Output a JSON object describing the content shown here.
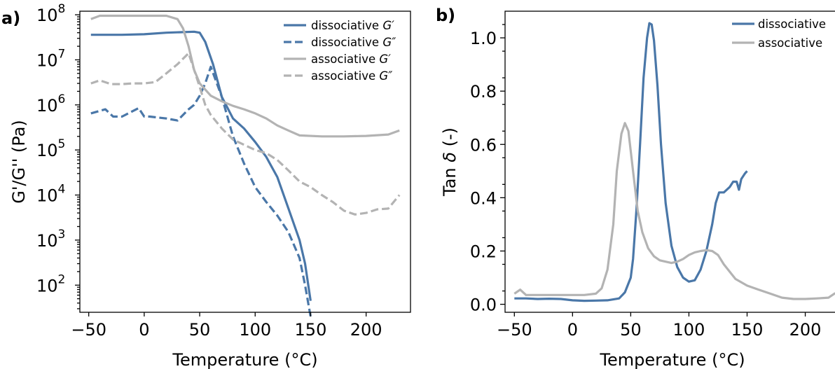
{
  "colors": {
    "dissociative": "#4a77a8",
    "associative": "#b3b3b3"
  },
  "chart_data": [
    {
      "type": "line",
      "panel_label": "a)",
      "xlabel": "Temperature (°C)",
      "ylabel": "G'/G'' (Pa)",
      "xlim": [
        -58,
        240
      ],
      "ylim": [
        25,
        120000000
      ],
      "yscale": "log",
      "xticks": [
        -50,
        0,
        50,
        100,
        150,
        200
      ],
      "xtick_labels": [
        "−50",
        "0",
        "50",
        "100",
        "150",
        "200"
      ],
      "yticks": [
        100,
        1000,
        10000,
        100000,
        1000000,
        10000000,
        100000000
      ],
      "ytick_labels": [
        {
          "base": "10",
          "exp": "2"
        },
        {
          "base": "10",
          "exp": "3"
        },
        {
          "base": "10",
          "exp": "4"
        },
        {
          "base": "10",
          "exp": "5"
        },
        {
          "base": "10",
          "exp": "6"
        },
        {
          "base": "10",
          "exp": "7"
        },
        {
          "base": "10",
          "exp": "8"
        }
      ],
      "legend_position": "top-right",
      "series": [
        {
          "name_prefix": "dissociative ",
          "name_symbol": "G′",
          "color_key": "dissociative",
          "dash": "solid",
          "x": [
            -48,
            -20,
            0,
            20,
            45,
            50,
            55,
            62,
            70,
            80,
            90,
            100,
            110,
            120,
            130,
            140,
            145,
            150
          ],
          "y": [
            36000000,
            36000000,
            37000000,
            40000000,
            42000000,
            40000000,
            25000000,
            8000000,
            1500000,
            500000,
            300000,
            150000,
            70000,
            25000,
            5000,
            1000,
            300,
            45
          ]
        },
        {
          "name_prefix": "dissociative ",
          "name_symbol": "G″",
          "color_key": "dissociative",
          "dash": "dashed",
          "x": [
            -48,
            -35,
            -28,
            -20,
            -5,
            0,
            5,
            20,
            30,
            35,
            40,
            45,
            50,
            55,
            60,
            70,
            80,
            90,
            100,
            110,
            120,
            130,
            140,
            145,
            150
          ],
          "y": [
            650000,
            800000,
            550000,
            550000,
            850000,
            550000,
            550000,
            500000,
            450000,
            600000,
            800000,
            1000000,
            1600000,
            3000000,
            7000000,
            1500000,
            200000,
            50000,
            15000,
            7000,
            3500,
            1500,
            400,
            100,
            20
          ]
        },
        {
          "name_prefix": "associative ",
          "name_symbol": "G′",
          "color_key": "associative",
          "dash": "solid",
          "x": [
            -48,
            -40,
            -20,
            0,
            20,
            30,
            35,
            40,
            45,
            50,
            60,
            70,
            80,
            90,
            100,
            110,
            120,
            130,
            140,
            160,
            180,
            200,
            220,
            230
          ],
          "y": [
            80000000,
            95000000,
            95000000,
            95000000,
            95000000,
            80000000,
            50000000,
            20000000,
            6000000,
            3000000,
            1600000,
            1200000,
            950000,
            800000,
            650000,
            500000,
            350000,
            270000,
            210000,
            200000,
            200000,
            205000,
            220000,
            270000
          ]
        },
        {
          "name_prefix": "associative ",
          "name_symbol": "G″",
          "color_key": "associative",
          "dash": "dashed",
          "x": [
            -48,
            -40,
            -30,
            -20,
            -10,
            0,
            10,
            20,
            30,
            40,
            45,
            50,
            55,
            60,
            70,
            80,
            90,
            100,
            110,
            120,
            130,
            140,
            150,
            160,
            170,
            180,
            190,
            200,
            210,
            220,
            230
          ],
          "y": [
            3000000,
            3500000,
            2900000,
            2900000,
            3000000,
            3000000,
            3200000,
            5000000,
            8000000,
            14000000,
            6000000,
            2500000,
            1000000,
            600000,
            300000,
            170000,
            130000,
            100000,
            85000,
            60000,
            35000,
            20000,
            15000,
            10000,
            7000,
            4500,
            3700,
            4000,
            4800,
            5000,
            10000
          ]
        }
      ]
    },
    {
      "type": "line",
      "panel_label": "b)",
      "xlabel": "Temperature (°C)",
      "ylabel_prefix": "Tan ",
      "ylabel_symbol": "δ",
      "ylabel_suffix": " (-)",
      "xlim": [
        -58,
        240
      ],
      "ylim": [
        -0.03,
        1.1
      ],
      "xticks": [
        -50,
        0,
        50,
        100,
        150,
        200
      ],
      "xtick_labels": [
        "−50",
        "0",
        "50",
        "100",
        "150",
        "200"
      ],
      "yticks": [
        0.0,
        0.2,
        0.4,
        0.6,
        0.8,
        1.0
      ],
      "ytick_labels": [
        "0.0",
        "0.2",
        "0.4",
        "0.6",
        "0.8",
        "1.0"
      ],
      "legend_position": "top-right",
      "series": [
        {
          "name": "dissociative",
          "color_key": "dissociative",
          "x": [
            -50,
            -40,
            -30,
            -20,
            -10,
            0,
            10,
            20,
            30,
            40,
            45,
            50,
            52,
            55,
            58,
            61,
            64,
            66,
            68,
            70,
            73,
            76,
            80,
            85,
            90,
            95,
            100,
            105,
            110,
            115,
            120,
            123,
            126,
            130,
            135,
            138,
            141,
            143,
            145,
            148,
            150
          ],
          "y": [
            0.022,
            0.022,
            0.02,
            0.021,
            0.02,
            0.015,
            0.013,
            0.014,
            0.015,
            0.022,
            0.045,
            0.1,
            0.17,
            0.36,
            0.6,
            0.85,
            1.0,
            1.055,
            1.05,
            0.99,
            0.82,
            0.6,
            0.38,
            0.22,
            0.14,
            0.1,
            0.085,
            0.09,
            0.13,
            0.2,
            0.3,
            0.38,
            0.42,
            0.42,
            0.44,
            0.46,
            0.46,
            0.43,
            0.47,
            0.49,
            0.5
          ]
        },
        {
          "name": "associative",
          "color_key": "associative",
          "x": [
            -50,
            -45,
            -40,
            -30,
            -20,
            -10,
            0,
            10,
            20,
            25,
            30,
            35,
            38,
            42,
            45,
            48,
            52,
            56,
            60,
            65,
            70,
            75,
            80,
            85,
            90,
            95,
            100,
            105,
            110,
            115,
            120,
            125,
            130,
            140,
            150,
            160,
            170,
            180,
            190,
            200,
            210,
            220,
            225,
            228,
            230
          ],
          "y": [
            0.04,
            0.055,
            0.035,
            0.035,
            0.035,
            0.035,
            0.035,
            0.035,
            0.04,
            0.06,
            0.13,
            0.3,
            0.5,
            0.64,
            0.68,
            0.65,
            0.5,
            0.35,
            0.27,
            0.21,
            0.18,
            0.165,
            0.16,
            0.155,
            0.16,
            0.17,
            0.185,
            0.195,
            0.2,
            0.203,
            0.2,
            0.185,
            0.15,
            0.095,
            0.07,
            0.055,
            0.04,
            0.025,
            0.02,
            0.02,
            0.022,
            0.025,
            0.04,
            0.045,
            0.035
          ]
        }
      ]
    }
  ]
}
